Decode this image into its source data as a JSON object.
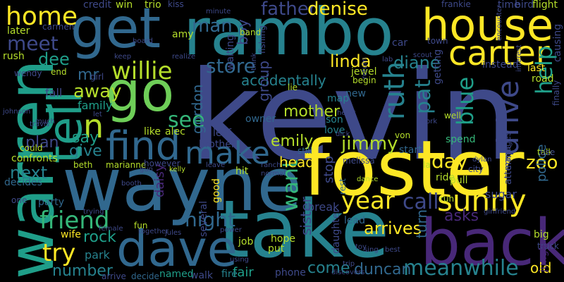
{
  "palette": [
    "#fde725",
    "#b5de2b",
    "#6ece58",
    "#35b779",
    "#1f9e89",
    "#26828e",
    "#31688e",
    "#3e4989",
    "#482878",
    "#440154"
  ],
  "background": "#000000",
  "words": [
    {
      "text": "kevin",
      "color": "#3e4989"
    },
    {
      "text": "foster",
      "color": "#fde725"
    },
    {
      "text": "wayne",
      "color": "#31688e"
    },
    {
      "text": "take",
      "color": "#26828e"
    },
    {
      "text": "back",
      "color": "#482878"
    },
    {
      "text": "rambo",
      "color": "#26828e"
    },
    {
      "text": "dave",
      "color": "#31688e"
    },
    {
      "text": "warren",
      "color": "#1f9e89"
    },
    {
      "text": "get",
      "color": "#31688e"
    },
    {
      "text": "go",
      "color": "#6ece58"
    },
    {
      "text": "house",
      "color": "#fde725"
    },
    {
      "text": "carter",
      "color": "#fde725"
    },
    {
      "text": "find",
      "color": "#31688e"
    },
    {
      "text": "tell",
      "color": "#1f9e89"
    },
    {
      "text": "make",
      "color": "#31688e"
    },
    {
      "text": "home",
      "color": "#fde725"
    },
    {
      "text": "meet",
      "color": "#3e4989"
    },
    {
      "text": "n",
      "color": "#b5de2b"
    },
    {
      "text": "drive",
      "color": "#3e4989"
    },
    {
      "text": "sunny",
      "color": "#fde725"
    },
    {
      "text": "willie",
      "color": "#b5de2b"
    },
    {
      "text": "man",
      "color": "#31688e"
    },
    {
      "text": "store",
      "color": "#31688e"
    },
    {
      "text": "father",
      "color": "#3e4989"
    },
    {
      "text": "denise",
      "color": "#fde725"
    },
    {
      "text": "year",
      "color": "#fde725"
    },
    {
      "text": "call",
      "color": "#3e4989"
    },
    {
      "text": "night",
      "color": "#31688e"
    },
    {
      "text": "friend",
      "color": "#35b779"
    },
    {
      "text": "try",
      "color": "#fde725"
    },
    {
      "text": "meanwhile",
      "color": "#26828e"
    },
    {
      "text": "ruth",
      "color": "#26828e"
    },
    {
      "text": "blue",
      "color": "#1f9e89"
    },
    {
      "text": "help",
      "color": "#1f9e89"
    },
    {
      "text": "pat",
      "color": "#26828e"
    },
    {
      "text": "want",
      "color": "#35b779"
    },
    {
      "text": "jimmy",
      "color": "#b5de2b"
    },
    {
      "text": "day",
      "color": "#fde725"
    },
    {
      "text": "linda",
      "color": "#fde725"
    },
    {
      "text": "diane",
      "color": "#26828e"
    },
    {
      "text": "next",
      "color": "#26828e"
    },
    {
      "text": "away",
      "color": "#b5de2b"
    },
    {
      "text": "see",
      "color": "#35b779"
    },
    {
      "text": "dee",
      "color": "#1f9e89"
    },
    {
      "text": "mr",
      "color": "#31688e"
    },
    {
      "text": "mother",
      "color": "#b5de2b"
    },
    {
      "text": "emily",
      "color": "#b5de2b"
    },
    {
      "text": "arrives",
      "color": "#fde725"
    },
    {
      "text": "asks",
      "color": "#482878"
    },
    {
      "text": "zoo",
      "color": "#fde725"
    },
    {
      "text": "police",
      "color": "#31688e"
    },
    {
      "text": "say",
      "color": "#1f9e89"
    },
    {
      "text": "give",
      "color": "#26828e"
    },
    {
      "text": "plan",
      "color": "#3e4989"
    },
    {
      "text": "number",
      "color": "#26828e"
    },
    {
      "text": "duncan",
      "color": "#31688e"
    },
    {
      "text": "come",
      "color": "#26828e"
    },
    {
      "text": "old",
      "color": "#fde725"
    },
    {
      "text": "boy",
      "color": "#3e4989"
    },
    {
      "text": "accidentally",
      "color": "#26828e"
    },
    {
      "text": "gordon",
      "color": "#31688e"
    },
    {
      "text": "group",
      "color": "#3e4989"
    },
    {
      "text": "head",
      "color": "#fde725"
    },
    {
      "text": "sister",
      "color": "#3e4989"
    },
    {
      "text": "turn",
      "color": "#31688e"
    },
    {
      "text": "stop",
      "color": "#3e4989"
    },
    {
      "text": "family",
      "color": "#1f9e89"
    },
    {
      "text": "fall",
      "color": "#3e4989"
    },
    {
      "text": "like",
      "color": "#b5de2b"
    },
    {
      "text": "rock",
      "color": "#1f9e89"
    },
    {
      "text": "park",
      "color": "#26828e"
    },
    {
      "text": "fair",
      "color": "#1f9e89"
    },
    {
      "text": "phone",
      "color": "#3e4989"
    },
    {
      "text": "fire",
      "color": "#26828e"
    },
    {
      "text": "walk",
      "color": "#3e4989"
    },
    {
      "text": "named",
      "color": "#1f9e89"
    },
    {
      "text": "decide",
      "color": "#31688e"
    },
    {
      "text": "arrive",
      "color": "#3e4989"
    },
    {
      "text": "wife",
      "color": "#fde725"
    },
    {
      "text": "party",
      "color": "#31688e"
    },
    {
      "text": "one",
      "color": "#3e4989"
    },
    {
      "text": "decides",
      "color": "#31688e"
    },
    {
      "text": "could",
      "color": "#b5de2b"
    },
    {
      "text": "beth",
      "color": "#b5de2b"
    },
    {
      "text": "marianne",
      "color": "#b5de2b"
    },
    {
      "text": "however",
      "color": "#3e4989"
    },
    {
      "text": "daisy",
      "color": "#482878"
    },
    {
      "text": "several",
      "color": "#3e4989"
    },
    {
      "text": "good",
      "color": "#fde725"
    },
    {
      "text": "job",
      "color": "#b5de2b"
    },
    {
      "text": "hope",
      "color": "#b5de2b"
    },
    {
      "text": "put",
      "color": "#b5de2b"
    },
    {
      "text": "daughter",
      "color": "#3e4989"
    },
    {
      "text": "lead",
      "color": "#31688e"
    },
    {
      "text": "break",
      "color": "#3e4989"
    },
    {
      "text": "rest",
      "color": "#31688e"
    },
    {
      "text": "new",
      "color": "#31688e"
    },
    {
      "text": "jewel",
      "color": "#b5de2b"
    },
    {
      "text": "begin",
      "color": "#b5de2b"
    },
    {
      "text": "son",
      "color": "#26828e"
    },
    {
      "text": "love",
      "color": "#26828e"
    },
    {
      "text": "map",
      "color": "#26828e"
    },
    {
      "text": "owner",
      "color": "#31688e"
    },
    {
      "text": "still",
      "color": "#31688e"
    },
    {
      "text": "start",
      "color": "#31688e"
    },
    {
      "text": "spend",
      "color": "#35b779"
    },
    {
      "text": "talk",
      "color": "#b5de2b"
    },
    {
      "text": "ride",
      "color": "#b5de2b"
    },
    {
      "text": "city",
      "color": "#3e4989"
    },
    {
      "text": "pull",
      "color": "#b5de2b"
    },
    {
      "text": "run",
      "color": "#b5de2b"
    },
    {
      "text": "sugar",
      "color": "#3e4989"
    },
    {
      "text": "girlfriend",
      "color": "#3e4989"
    },
    {
      "text": "big",
      "color": "#b5de2b"
    },
    {
      "text": "truck",
      "color": "#3e4989"
    },
    {
      "text": "jungle",
      "color": "#482878"
    },
    {
      "text": "attempt",
      "color": "#3e4989"
    },
    {
      "text": "manages",
      "color": "#3e4989"
    },
    {
      "text": "use",
      "color": "#3e4989"
    },
    {
      "text": "last",
      "color": "#fde725"
    },
    {
      "text": "road",
      "color": "#b5de2b"
    },
    {
      "text": "causing",
      "color": "#3e4989"
    },
    {
      "text": "finally",
      "color": "#3e4989"
    },
    {
      "text": "instead",
      "color": "#3e4989"
    },
    {
      "text": "getting",
      "color": "#3e4989"
    },
    {
      "text": "flight",
      "color": "#b5de2b"
    },
    {
      "text": "bird",
      "color": "#3e4989"
    },
    {
      "text": "time",
      "color": "#3e4989"
    },
    {
      "text": "frankie",
      "color": "#3e4989"
    },
    {
      "text": "trio",
      "color": "#b5de2b"
    },
    {
      "text": "credit",
      "color": "#3e4989"
    },
    {
      "text": "win",
      "color": "#b5de2b"
    },
    {
      "text": "kiss",
      "color": "#3e4989"
    },
    {
      "text": "minute",
      "color": "#3e4989"
    },
    {
      "text": "band",
      "color": "#b5de2b"
    },
    {
      "text": "fishing",
      "color": "#3e4989"
    },
    {
      "text": "amy",
      "color": "#b5de2b"
    },
    {
      "text": "board",
      "color": "#3e4989"
    },
    {
      "text": "car",
      "color": "#3e4989"
    },
    {
      "text": "town",
      "color": "#3e4989"
    },
    {
      "text": "scout",
      "color": "#3e4989"
    },
    {
      "text": "keep",
      "color": "#3e4989"
    },
    {
      "text": "realize",
      "color": "#3e4989"
    },
    {
      "text": "think",
      "color": "#3e4989"
    },
    {
      "text": "waiting",
      "color": "#3e4989"
    },
    {
      "text": "later",
      "color": "#b5de2b"
    },
    {
      "text": "carmen",
      "color": "#3e4989"
    },
    {
      "text": "rush",
      "color": "#b5de2b"
    },
    {
      "text": "wendy",
      "color": "#3e4989"
    },
    {
      "text": "end",
      "color": "#b5de2b"
    },
    {
      "text": "girl",
      "color": "#3e4989"
    },
    {
      "text": "let",
      "color": "#3e4989"
    },
    {
      "text": "much",
      "color": "#3e4989"
    },
    {
      "text": "johnson",
      "color": "#3e4989"
    },
    {
      "text": "travis",
      "color": "#3e4989"
    },
    {
      "text": "confronts",
      "color": "#b5de2b"
    },
    {
      "text": "alec",
      "color": "#b5de2b"
    },
    {
      "text": "leaf",
      "color": "#3e4989"
    },
    {
      "text": "brother",
      "color": "#3e4989"
    },
    {
      "text": "hit",
      "color": "#b5de2b"
    },
    {
      "text": "melissa",
      "color": "#3e4989"
    },
    {
      "text": "dylan",
      "color": "#3e4989"
    },
    {
      "text": "dance",
      "color": "#b5de2b"
    },
    {
      "text": "gun",
      "color": "#3e4989"
    },
    {
      "text": "booth",
      "color": "#3e4989"
    },
    {
      "text": "fun",
      "color": "#b5de2b"
    },
    {
      "text": "together",
      "color": "#3e4989"
    },
    {
      "text": "jules",
      "color": "#3e4989"
    },
    {
      "text": "power",
      "color": "#3e4989"
    },
    {
      "text": "trying",
      "color": "#3e4989"
    },
    {
      "text": "female",
      "color": "#3e4989"
    },
    {
      "text": "discovers",
      "color": "#3e4989"
    },
    {
      "text": "best",
      "color": "#3e4989"
    },
    {
      "text": "sing",
      "color": "#3e4989"
    },
    {
      "text": "toy",
      "color": "#3e4989"
    },
    {
      "text": "trip",
      "color": "#3e4989"
    },
    {
      "text": "using",
      "color": "#3e4989"
    },
    {
      "text": "kelly",
      "color": "#b5de2b"
    },
    {
      "text": "leave",
      "color": "#3e4989"
    },
    {
      "text": "normal",
      "color": "#3e4989"
    },
    {
      "text": "return",
      "color": "#3e4989"
    },
    {
      "text": "well",
      "color": "#b5de2b"
    },
    {
      "text": "work",
      "color": "#3e4989"
    },
    {
      "text": "heart",
      "color": "#3e4989"
    },
    {
      "text": "interest",
      "color": "#3e4989"
    },
    {
      "text": "la",
      "color": "#b5de2b"
    },
    {
      "text": "von",
      "color": "#b5de2b"
    },
    {
      "text": "ranch",
      "color": "#3e4989"
    },
    {
      "text": "encounter",
      "color": "#3e4989"
    },
    {
      "text": "lie",
      "color": "#b5de2b"
    },
    {
      "text": "lab",
      "color": "#3e4989"
    },
    {
      "text": "dick",
      "color": "#3e4989"
    }
  ]
}
